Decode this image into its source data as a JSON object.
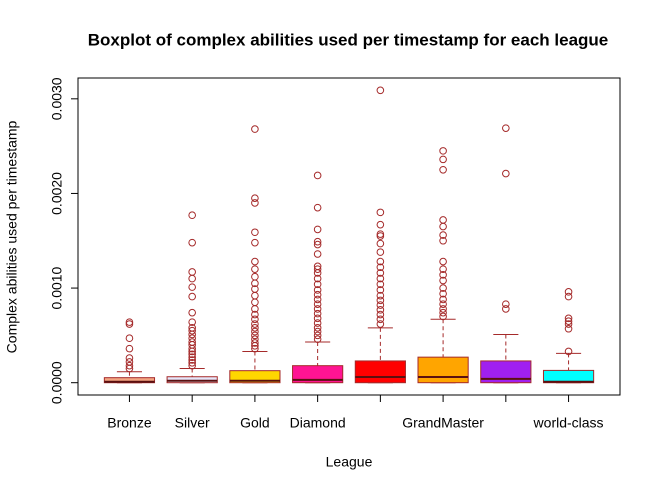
{
  "chart_data": {
    "type": "box",
    "title": "Boxplot of complex abilities used per timestamp for each league",
    "x_label": "League",
    "y_label": "Complex abilities used per timestamp",
    "categories": [
      "Bronze",
      "Silver",
      "Gold",
      "Diamond",
      null,
      "GrandMaster",
      null,
      "world-class"
    ],
    "colors": [
      "#f4a582",
      "#e6e6fa",
      "#ffd700",
      "#ff1493",
      "#ff0000",
      "#ffa500",
      "#a020f0",
      "#00ffff"
    ],
    "line_color": "#a52a2a",
    "ylim": [
      -0.00013,
      0.00322
    ],
    "yticks": [
      {
        "value": 0,
        "label": "0.0000"
      },
      {
        "value": 0.001,
        "label": "0.0010"
      },
      {
        "value": 0.002,
        "label": "0.0020"
      },
      {
        "value": 0.003,
        "label": "0.0030"
      }
    ],
    "boxes": [
      {
        "min": 0,
        "q1": 0,
        "median": 1e-05,
        "q3": 5.3e-05,
        "max": 0.000116,
        "outliers": [
          0.00064,
          0.00062,
          0.00047,
          0.00036,
          0.00026,
          0.00022,
          0.00018,
          0.00015
        ]
      },
      {
        "min": 0,
        "q1": 0,
        "median": 2e-05,
        "q3": 6.3e-05,
        "max": 0.00015,
        "outliers": [
          0.00177,
          0.00148,
          0.00117,
          0.0011,
          0.00101,
          0.00091,
          0.00074,
          0.00064,
          0.00058,
          0.00055,
          0.00051,
          0.00047,
          0.00043,
          0.0004,
          0.00036,
          0.00033,
          0.0003,
          0.00027,
          0.00024,
          0.00021,
          0.00018
        ]
      },
      {
        "min": 0,
        "q1": 0,
        "median": 2e-05,
        "q3": 0.000127,
        "max": 0.00033,
        "outliers": [
          0.00268,
          0.00195,
          0.0019,
          0.00159,
          0.00148,
          0.00128,
          0.0012,
          0.00112,
          0.00105,
          0.00099,
          0.00092,
          0.00085,
          0.00078,
          0.00072,
          0.00067,
          0.00062,
          0.00058,
          0.00054,
          0.0005,
          0.00046,
          0.00042,
          0.00039,
          0.00036
        ]
      },
      {
        "min": 0,
        "q1": 0,
        "median": 3e-05,
        "q3": 0.00018,
        "max": 0.00043,
        "outliers": [
          0.00219,
          0.00185,
          0.00162,
          0.00149,
          0.00146,
          0.00136,
          0.00123,
          0.0012,
          0.00116,
          0.0011,
          0.00104,
          0.00098,
          0.00093,
          0.00088,
          0.00083,
          0.00078,
          0.00073,
          0.00068,
          0.00063,
          0.00058,
          0.00054,
          0.0005,
          0.00046
        ]
      },
      {
        "min": 0,
        "q1": 0,
        "median": 6e-05,
        "q3": 0.00023,
        "max": 0.00058,
        "outliers": [
          0.00309,
          0.0018,
          0.00167,
          0.00157,
          0.00155,
          0.00147,
          0.00138,
          0.00128,
          0.00122,
          0.00116,
          0.0011,
          0.00104,
          0.00098,
          0.00092,
          0.00087,
          0.00082,
          0.00077,
          0.00072,
          0.00067,
          0.00062
        ]
      },
      {
        "min": 0,
        "q1": 0,
        "median": 6e-05,
        "q3": 0.00027,
        "max": 0.00067,
        "outliers": [
          0.00245,
          0.00236,
          0.00225,
          0.00172,
          0.00165,
          0.00156,
          0.0015,
          0.00128,
          0.0012,
          0.00114,
          0.00108,
          0.001,
          0.00094,
          0.00088,
          0.00083,
          0.00078,
          0.00074,
          0.0007
        ]
      },
      {
        "min": 0,
        "q1": 0,
        "median": 4e-05,
        "q3": 0.00023,
        "max": 0.00051,
        "outliers": [
          0.00269,
          0.00221,
          0.00083,
          0.00078
        ]
      },
      {
        "min": 0,
        "q1": 0,
        "median": 1e-05,
        "q3": 0.00013,
        "max": 0.00031,
        "outliers": [
          0.00096,
          0.00091,
          0.00068,
          0.00065,
          0.00062,
          0.00057,
          0.00033
        ]
      }
    ]
  }
}
